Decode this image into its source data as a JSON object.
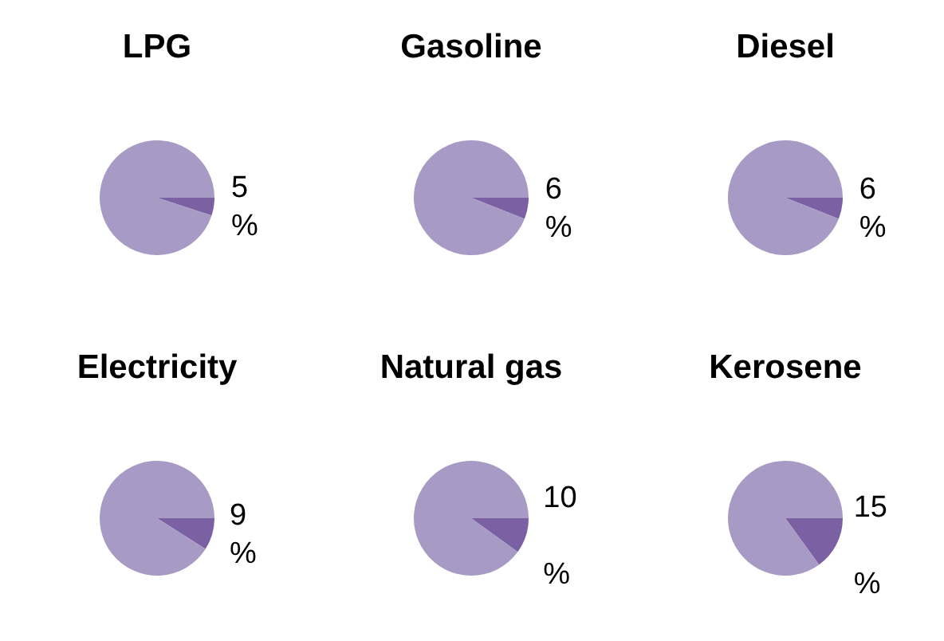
{
  "chart_data": [
    {
      "type": "pie",
      "title": "LPG",
      "categories": [
        null,
        null
      ],
      "values": [
        5,
        95
      ],
      "colors": [
        "#7b61a3",
        "#a79ac4"
      ],
      "value_labels": [
        "5 %",
        null
      ]
    },
    {
      "type": "pie",
      "title": "Gasoline",
      "categories": [
        null,
        null
      ],
      "values": [
        6,
        94
      ],
      "colors": [
        "#7b61a3",
        "#a79ac4"
      ],
      "value_labels": [
        "6 %",
        null
      ]
    },
    {
      "type": "pie",
      "title": "Diesel",
      "categories": [
        null,
        null
      ],
      "values": [
        6,
        94
      ],
      "colors": [
        "#7b61a3",
        "#a79ac4"
      ],
      "value_labels": [
        "6 %",
        null
      ]
    },
    {
      "type": "pie",
      "title": "Electricity",
      "categories": [
        null,
        null
      ],
      "values": [
        9,
        91
      ],
      "colors": [
        "#7b61a3",
        "#a79ac4"
      ],
      "value_labels": [
        "9 %",
        null
      ]
    },
    {
      "type": "pie",
      "title": "Natural gas",
      "categories": [
        null,
        null
      ],
      "values": [
        10,
        90
      ],
      "colors": [
        "#7b61a3",
        "#a79ac4"
      ],
      "value_labels": [
        "10 %",
        null
      ]
    },
    {
      "type": "pie",
      "title": "Kerosene",
      "categories": [
        null,
        null
      ],
      "values": [
        15,
        85
      ],
      "colors": [
        "#7b61a3",
        "#a79ac4"
      ],
      "value_labels": [
        "15 %",
        null
      ]
    }
  ]
}
